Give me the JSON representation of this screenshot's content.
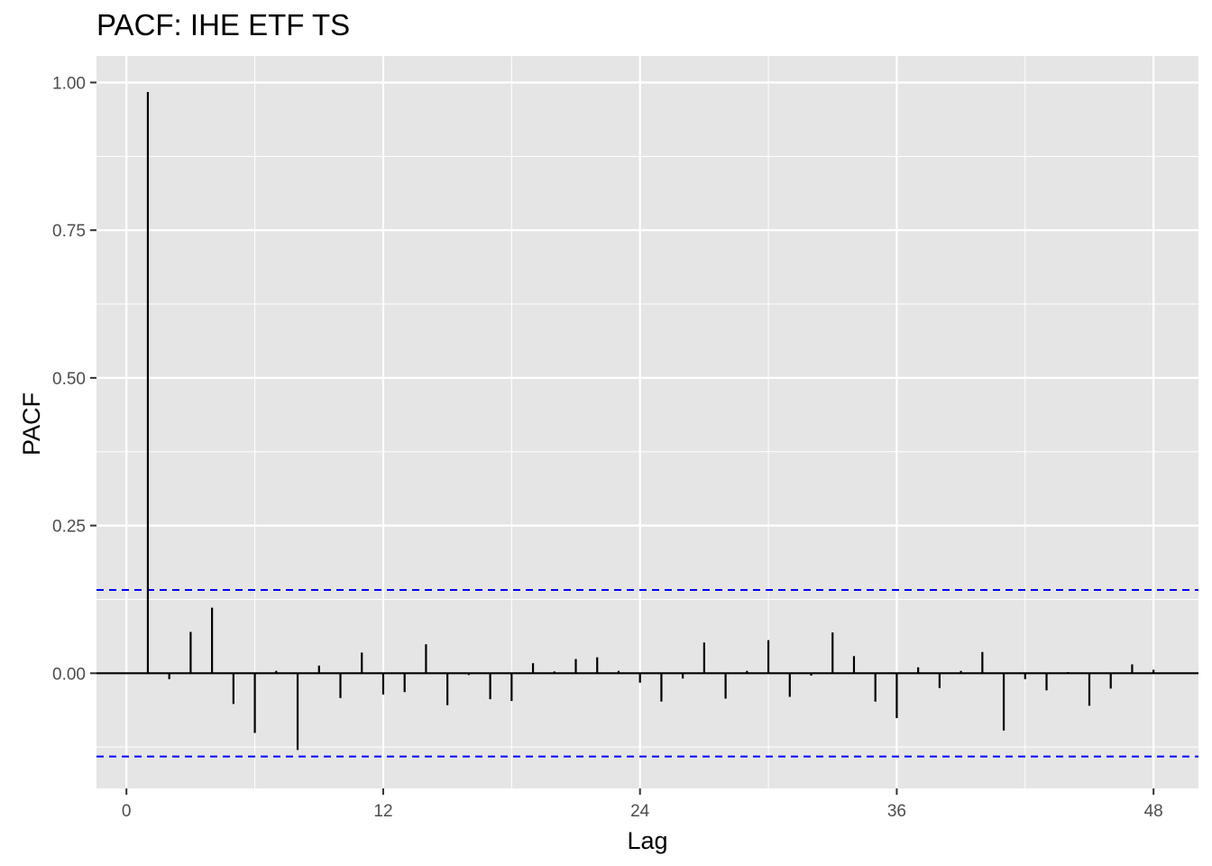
{
  "chart_data": {
    "type": "bar",
    "title": "PACF: IHE ETF TS",
    "xlabel": "Lag",
    "ylabel": "PACF",
    "x_ticks": [
      0,
      12,
      24,
      36,
      48
    ],
    "x_tick_labels": [
      "0",
      "12",
      "24",
      "36",
      "48"
    ],
    "y_ticks": [
      0,
      0.25,
      0.5,
      0.75,
      1.0
    ],
    "y_tick_labels": [
      "0.00",
      "0.25",
      "0.50",
      "0.75",
      "1.00"
    ],
    "xlim": [
      -1.4,
      50.1
    ],
    "ylim": [
      -0.195,
      1.045
    ],
    "grid": true,
    "confidence_bound": 0.141,
    "confidence_color": "#0000ff",
    "panel_color": "#e5e5e5",
    "bar_color": "#000000",
    "lags": [
      1,
      2,
      3,
      4,
      5,
      6,
      7,
      8,
      9,
      10,
      11,
      12,
      13,
      14,
      15,
      16,
      17,
      18,
      19,
      20,
      21,
      22,
      23,
      24,
      25,
      26,
      27,
      28,
      29,
      30,
      31,
      32,
      33,
      34,
      35,
      36,
      37,
      38,
      39,
      40,
      41,
      42,
      43,
      44,
      45,
      46,
      47,
      48
    ],
    "values": [
      0.984,
      -0.01,
      0.07,
      0.111,
      -0.052,
      -0.101,
      0.004,
      -0.13,
      0.013,
      -0.042,
      0.035,
      -0.036,
      -0.032,
      0.049,
      -0.054,
      -0.003,
      -0.044,
      -0.047,
      0.017,
      0.003,
      0.024,
      0.027,
      0.004,
      -0.016,
      -0.048,
      -0.009,
      0.052,
      -0.043,
      0.004,
      0.056,
      -0.04,
      -0.004,
      0.069,
      0.029,
      -0.048,
      -0.076,
      0.01,
      -0.025,
      0.004,
      0.036,
      -0.097,
      -0.01,
      -0.029,
      0.002,
      -0.055,
      -0.026,
      0.015,
      0.006
    ]
  }
}
